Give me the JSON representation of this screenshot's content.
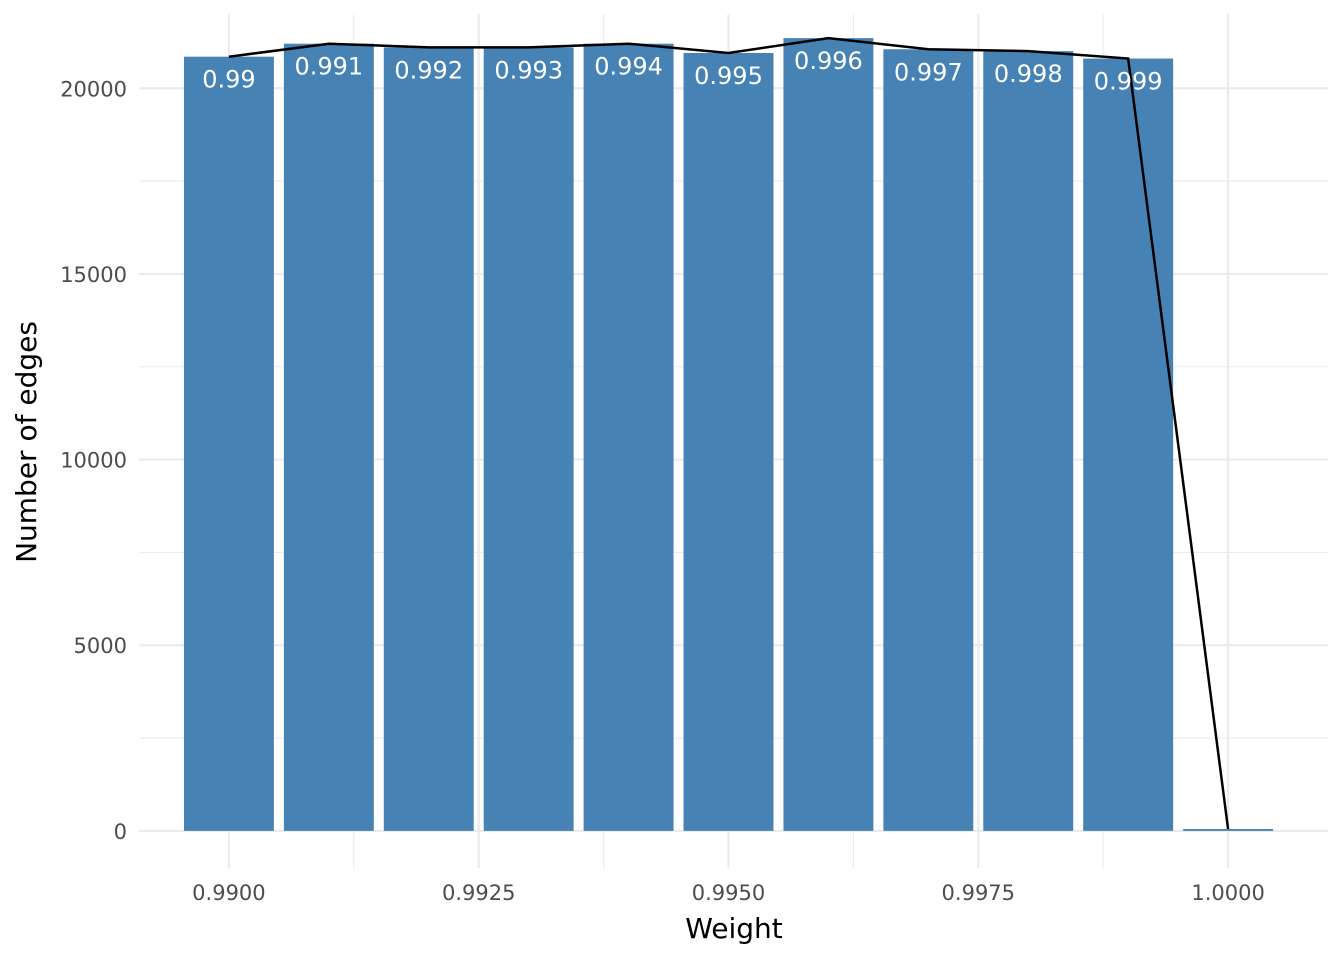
{
  "chart_data": {
    "type": "bar",
    "title": "",
    "xlabel": "Weight",
    "ylabel": "Number of edges",
    "x": [
      0.99,
      0.991,
      0.992,
      0.993,
      0.994,
      0.995,
      0.996,
      0.997,
      0.998,
      0.999,
      1.0
    ],
    "values": [
      20850,
      21200,
      21100,
      21100,
      21200,
      20950,
      21350,
      21050,
      21000,
      20800,
      50
    ],
    "bar_labels": [
      "0.99",
      "0.991",
      "0.992",
      "0.993",
      "0.994",
      "0.995",
      "0.996",
      "0.997",
      "0.998",
      "0.999",
      ""
    ],
    "line_overlay": true,
    "xlim": [
      0.9891,
      1.001
    ],
    "ylim": [
      -1000,
      22000
    ],
    "x_ticks": [
      0.99,
      0.9925,
      0.995,
      0.9975,
      1.0
    ],
    "x_tick_labels": [
      "0.9900",
      "0.9925",
      "0.9950",
      "0.9975",
      "1.0000"
    ],
    "y_ticks": [
      0,
      5000,
      10000,
      15000,
      20000
    ],
    "y_tick_labels": [
      "0",
      "5000",
      "10000",
      "15000",
      "20000"
    ],
    "grid": true,
    "legend": "none",
    "bar_color": "#4682b4",
    "line_color": "#000000",
    "grid_color": "#ebebeb"
  }
}
